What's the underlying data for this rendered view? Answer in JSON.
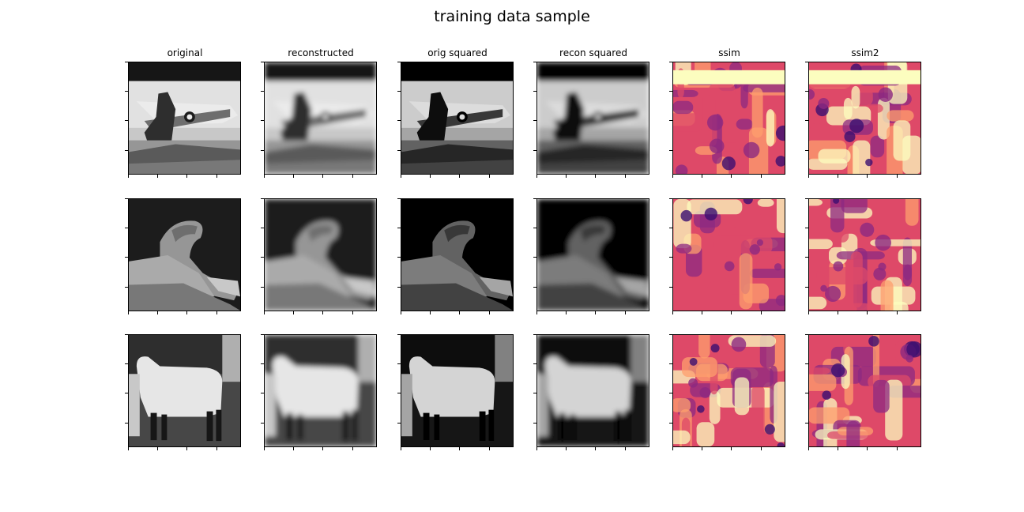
{
  "figure": {
    "title": "training data sample"
  },
  "columns": [
    {
      "key": "original",
      "label": "original",
      "style": "gray"
    },
    {
      "key": "reconstructed",
      "label": "reconstructed",
      "style": "gray-blur"
    },
    {
      "key": "orig_squared",
      "label": "orig squared",
      "style": "gray-dark"
    },
    {
      "key": "recon_squared",
      "label": "recon squared",
      "style": "gray-blur-dark"
    },
    {
      "key": "ssim",
      "label": "ssim",
      "style": "magma"
    },
    {
      "key": "ssim2",
      "label": "ssim2",
      "style": "magma"
    }
  ],
  "rows": [
    {
      "subject": "aircraft-with-person"
    },
    {
      "subject": "lizard-on-rock"
    },
    {
      "subject": "sheep"
    }
  ],
  "colormaps": {
    "gray": [
      "#000000",
      "#ffffff"
    ],
    "magma": [
      "#000004",
      "#3b0f70",
      "#8c2981",
      "#de4968",
      "#fe9f6d",
      "#fcfdbf"
    ]
  }
}
